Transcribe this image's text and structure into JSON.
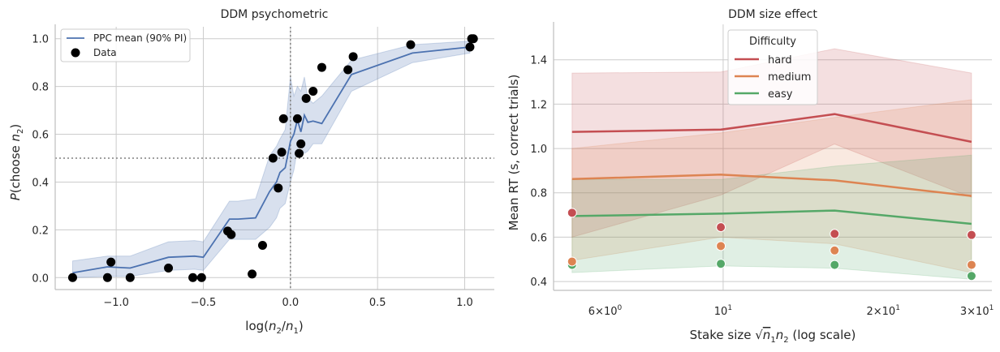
{
  "chart_data": [
    {
      "type": "line",
      "title": "DDM psychometric",
      "xlabel": "log(n₂/n₁)",
      "ylabel": "P(choose n₂)",
      "xlim": [
        -1.35,
        1.17
      ],
      "ylim": [
        -0.05,
        1.05
      ],
      "xticks": [
        -1.0,
        -0.5,
        0.0,
        0.5,
        1.0
      ],
      "xtick_labels": [
        "−1.0",
        "−0.5",
        "0.0",
        "0.5",
        "1.0"
      ],
      "yticks": [
        0.0,
        0.2,
        0.4,
        0.6,
        0.8,
        1.0
      ],
      "ytick_labels": [
        "0.0",
        "0.2",
        "0.4",
        "0.6",
        "0.8",
        "1.0"
      ],
      "grid": true,
      "legend_position": "top-left",
      "legend": [
        "PPC mean (90% PI)",
        "Data"
      ],
      "ref_lines": {
        "y": 0.5,
        "x": 0.0
      },
      "ppc": {
        "x": [
          -1.25,
          -1.05,
          -0.92,
          -0.7,
          -0.55,
          -0.5,
          -0.35,
          -0.3,
          -0.2,
          -0.12,
          -0.08,
          -0.06,
          -0.03,
          0.0,
          0.02,
          0.04,
          0.06,
          0.08,
          0.1,
          0.13,
          0.18,
          0.35,
          0.7,
          1.03
        ],
        "mean": [
          0.02,
          0.045,
          0.04,
          0.085,
          0.09,
          0.085,
          0.245,
          0.245,
          0.25,
          0.36,
          0.4,
          0.44,
          0.46,
          0.57,
          0.6,
          0.66,
          0.61,
          0.68,
          0.65,
          0.655,
          0.645,
          0.85,
          0.94,
          0.965
        ],
        "lower": [
          0.0,
          0.005,
          0.005,
          0.03,
          0.035,
          0.03,
          0.16,
          0.16,
          0.16,
          0.21,
          0.25,
          0.29,
          0.31,
          0.4,
          0.45,
          0.54,
          0.55,
          0.52,
          0.53,
          0.56,
          0.56,
          0.78,
          0.9,
          0.94
        ],
        "upper": [
          0.07,
          0.09,
          0.09,
          0.15,
          0.155,
          0.15,
          0.32,
          0.32,
          0.33,
          0.51,
          0.55,
          0.58,
          0.62,
          0.84,
          0.76,
          0.8,
          0.78,
          0.84,
          0.75,
          0.73,
          0.76,
          0.91,
          0.975,
          0.99
        ]
      },
      "data_points": {
        "x": [
          -1.25,
          -1.05,
          -1.03,
          -0.92,
          -0.7,
          -0.56,
          -0.51,
          -0.36,
          -0.34,
          -0.22,
          -0.16,
          -0.1,
          -0.07,
          -0.05,
          -0.04,
          0.04,
          0.05,
          0.06,
          0.09,
          0.13,
          0.18,
          0.33,
          0.36,
          0.69,
          1.03,
          1.04,
          1.05
        ],
        "y": [
          0.0,
          0.0,
          0.065,
          0.0,
          0.04,
          0.0,
          0.0,
          0.195,
          0.18,
          0.015,
          0.135,
          0.5,
          0.375,
          0.525,
          0.665,
          0.665,
          0.52,
          0.56,
          0.75,
          0.78,
          0.88,
          0.87,
          0.925,
          0.975,
          0.965,
          1.0,
          1.0
        ]
      }
    },
    {
      "type": "line",
      "title": "DDM size effect",
      "xlabel": "Stake size  √(n₁n₂)  (log scale)",
      "ylabel": "Mean RT (s, correct trials)",
      "xscale": "log",
      "xlim": [
        4.8,
        32
      ],
      "ylim": [
        0.36,
        1.56
      ],
      "xticks": [
        6,
        10,
        20,
        30
      ],
      "xtick_labels": [
        {
          "base": "6×10",
          "exp": "0"
        },
        {
          "base": "10",
          "exp": "1"
        },
        {
          "base": "2×10",
          "exp": "1"
        },
        {
          "base": "3×10",
          "exp": "1"
        }
      ],
      "yticks": [
        0.4,
        0.6,
        0.8,
        1.0,
        1.2,
        1.4
      ],
      "ytick_labels": [
        "0.4",
        "0.6",
        "0.8",
        "1.0",
        "1.2",
        "1.4"
      ],
      "grid": true,
      "legend_title": "Difficulty",
      "legend_position": "top-center",
      "x": [
        5.2,
        9.9,
        16.2,
        29.3
      ],
      "series": [
        {
          "name": "hard",
          "color": "#c44e52",
          "mean": [
            1.075,
            1.085,
            1.155,
            1.03
          ],
          "lower": [
            0.6,
            0.79,
            1.02,
            0.78
          ],
          "upper": [
            1.34,
            1.345,
            1.45,
            1.34
          ],
          "data": [
            0.71,
            0.645,
            0.615,
            0.61
          ]
        },
        {
          "name": "medium",
          "color": "#dd8452",
          "mean": [
            0.862,
            0.882,
            0.856,
            0.786
          ],
          "lower": [
            0.495,
            0.6,
            0.57,
            0.44
          ],
          "upper": [
            1.0,
            1.07,
            1.14,
            1.22
          ],
          "data": [
            0.49,
            0.56,
            0.54,
            0.475
          ]
        },
        {
          "name": "easy",
          "color": "#55a868",
          "mean": [
            0.695,
            0.706,
            0.72,
            0.66
          ],
          "lower": [
            0.44,
            0.47,
            0.46,
            0.41
          ],
          "upper": [
            0.86,
            0.86,
            0.92,
            0.97
          ],
          "data": [
            0.475,
            0.48,
            0.475,
            0.425
          ]
        }
      ]
    }
  ],
  "colors": {
    "ppc_line": "#4c72b0",
    "ppc_band": "#4c72b0",
    "data_points": "#000000",
    "ref_line": "#808080"
  }
}
